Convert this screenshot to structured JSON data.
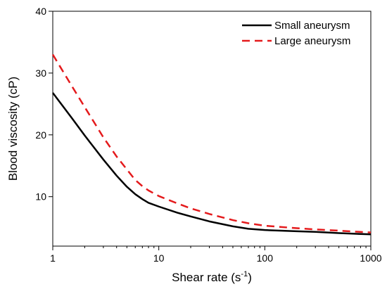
{
  "chart_data": {
    "type": "line",
    "title": "",
    "xlabel": "Shear rate (s",
    "xlabel_sup": "-1",
    "xlabel_end": ")",
    "ylabel": "Blood viscosity (cP)",
    "xscale": "log",
    "xlim": [
      1,
      1000
    ],
    "ylim": [
      2,
      40
    ],
    "xticks": [
      1,
      10,
      100,
      1000
    ],
    "xtick_labels": [
      "1",
      "10",
      "100",
      "1000"
    ],
    "yticks": [
      10,
      20,
      30,
      40
    ],
    "ytick_labels": [
      "10",
      "20",
      "30",
      "40"
    ],
    "grid": false,
    "legend_position": "top-right",
    "series": [
      {
        "name": "Small aneurysm",
        "color": "#000000",
        "style": "solid",
        "x": [
          1,
          1.5,
          2,
          3,
          4,
          5,
          6,
          7,
          8,
          10,
          15,
          20,
          30,
          50,
          70,
          100,
          200,
          300,
          500,
          1000
        ],
        "y": [
          26.8,
          22.8,
          19.9,
          16.0,
          13.4,
          11.6,
          10.4,
          9.6,
          9.0,
          8.4,
          7.4,
          6.8,
          6.0,
          5.2,
          4.8,
          4.6,
          4.4,
          4.3,
          4.1,
          3.9
        ]
      },
      {
        "name": "Large aneurysm",
        "color": "#e41a1c",
        "style": "dashed",
        "x": [
          1,
          1.5,
          2,
          3,
          4,
          5,
          6,
          7,
          8,
          10,
          15,
          20,
          30,
          50,
          70,
          100,
          200,
          300,
          500,
          1000
        ],
        "y": [
          33.0,
          28.0,
          24.5,
          19.6,
          16.5,
          14.4,
          12.7,
          11.7,
          11.0,
          10.1,
          8.9,
          8.1,
          7.2,
          6.2,
          5.7,
          5.3,
          4.9,
          4.7,
          4.5,
          4.2
        ]
      }
    ]
  }
}
